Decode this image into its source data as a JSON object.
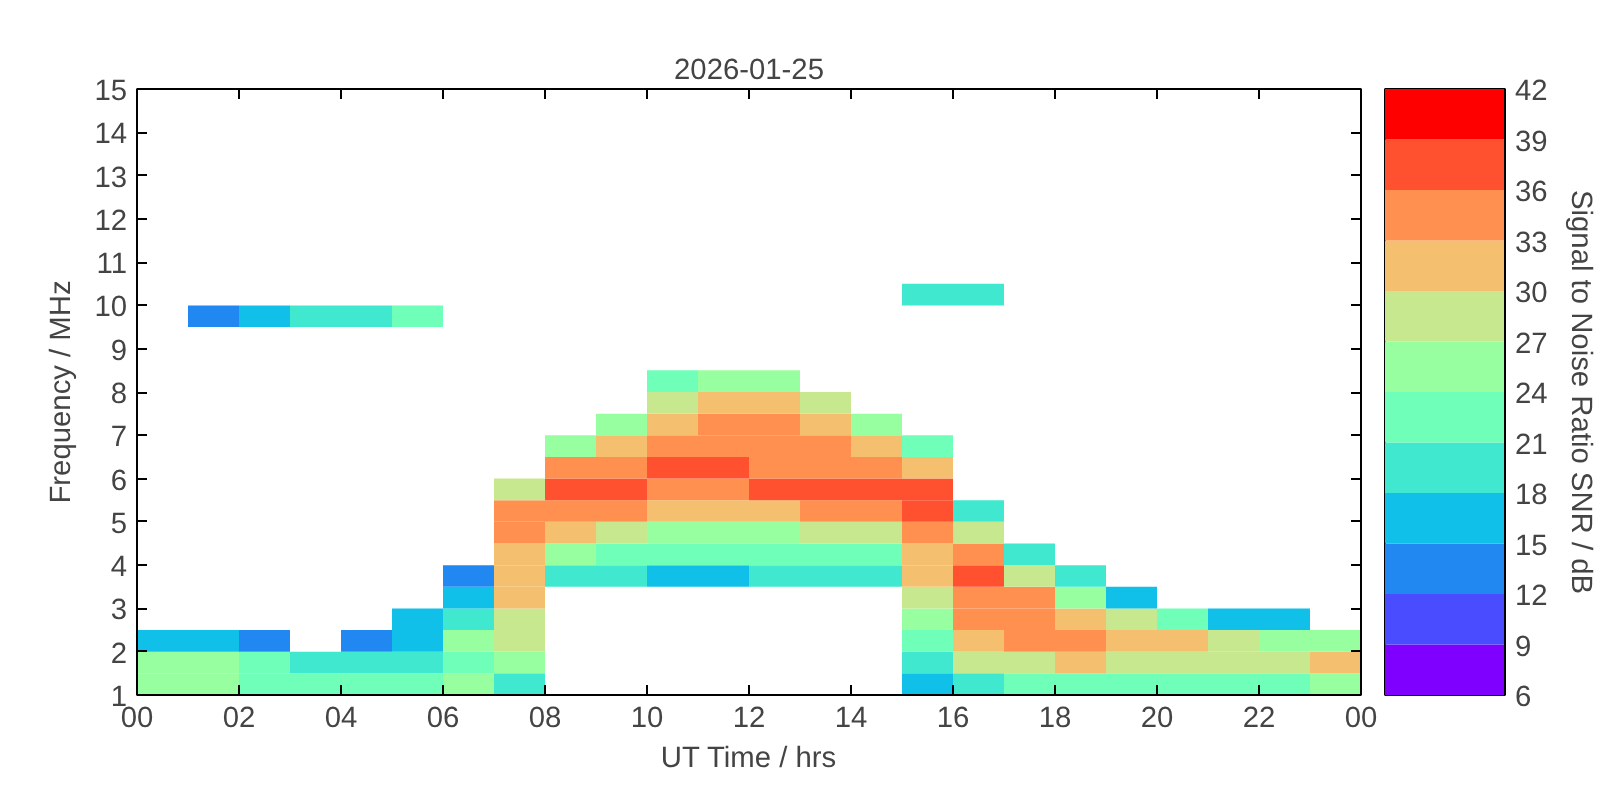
{
  "chart_data": {
    "type": "scatter",
    "title": "2026-01-25",
    "xlabel": "UT Time / hrs",
    "ylabel": "Frequency / MHz",
    "clabel": "Signal to Noise Ratio SNR / dB",
    "marker": "square",
    "grid": false,
    "xlim": [
      0,
      24
    ],
    "ylim": [
      1,
      15
    ],
    "xticks": [
      {
        "value": 0,
        "label": "00"
      },
      {
        "value": 2,
        "label": "02"
      },
      {
        "value": 4,
        "label": "04"
      },
      {
        "value": 6,
        "label": "06"
      },
      {
        "value": 8,
        "label": "08"
      },
      {
        "value": 10,
        "label": "10"
      },
      {
        "value": 12,
        "label": "12"
      },
      {
        "value": 14,
        "label": "14"
      },
      {
        "value": 16,
        "label": "16"
      },
      {
        "value": 18,
        "label": "18"
      },
      {
        "value": 20,
        "label": "20"
      },
      {
        "value": 22,
        "label": "22"
      },
      {
        "value": 24,
        "label": "00"
      }
    ],
    "yticks": [
      1,
      2,
      3,
      4,
      5,
      6,
      7,
      8,
      9,
      10,
      11,
      12,
      13,
      14,
      15
    ],
    "clim": [
      6,
      42
    ],
    "cticks": [
      6,
      9,
      12,
      15,
      18,
      21,
      24,
      27,
      30,
      33,
      36,
      39,
      42
    ],
    "x": [
      0.5,
      0.5,
      0.5,
      1.5,
      1.5,
      1.5,
      1.5,
      2.5,
      2.5,
      2.5,
      2.5,
      3.5,
      3.5,
      3.5,
      4.5,
      4.5,
      4.5,
      4.5,
      5.5,
      5.5,
      5.5,
      5.5,
      5.5,
      6.5,
      6.5,
      6.5,
      6.5,
      6.5,
      6.5,
      7.5,
      7.5,
      7.5,
      7.5,
      7.5,
      7.5,
      7.5,
      7.5,
      7.5,
      7.5,
      8.5,
      8.5,
      8.5,
      8.5,
      8.5,
      8.5,
      8.5,
      9.5,
      9.5,
      9.5,
      9.5,
      9.5,
      9.5,
      9.5,
      9.5,
      10.5,
      10.5,
      10.5,
      10.5,
      10.5,
      10.5,
      10.5,
      10.5,
      10.5,
      10.5,
      11.5,
      11.5,
      11.5,
      11.5,
      11.5,
      11.5,
      11.5,
      11.5,
      11.5,
      11.5,
      12.5,
      12.5,
      12.5,
      12.5,
      12.5,
      12.5,
      12.5,
      12.5,
      12.5,
      12.5,
      13.5,
      13.5,
      13.5,
      13.5,
      13.5,
      13.5,
      13.5,
      13.5,
      13.5,
      14.5,
      14.5,
      14.5,
      14.5,
      14.5,
      14.5,
      14.5,
      14.5,
      15.5,
      15.5,
      15.5,
      15.5,
      15.5,
      15.5,
      15.5,
      15.5,
      15.5,
      15.5,
      15.5,
      15.5,
      15.5,
      16.5,
      16.5,
      16.5,
      16.5,
      16.5,
      16.5,
      16.5,
      16.5,
      16.5,
      16.5,
      17.5,
      17.5,
      17.5,
      17.5,
      17.5,
      17.5,
      17.5,
      18.5,
      18.5,
      18.5,
      18.5,
      18.5,
      18.5,
      19.5,
      19.5,
      19.5,
      19.5,
      19.5,
      20.5,
      20.5,
      20.5,
      20.5,
      21.5,
      21.5,
      21.5,
      21.5,
      22.5,
      22.5,
      22.5,
      22.5,
      23.5,
      23.5,
      23.5
    ],
    "values": [
      1.25,
      1.75,
      2.25,
      1.25,
      1.75,
      2.25,
      9.75,
      1.25,
      1.75,
      2.25,
      9.75,
      1.25,
      1.75,
      9.75,
      1.25,
      1.75,
      2.25,
      9.75,
      1.25,
      1.75,
      2.25,
      2.75,
      9.75,
      1.25,
      1.75,
      2.25,
      2.75,
      3.25,
      3.75,
      1.25,
      1.75,
      2.25,
      2.75,
      3.25,
      3.75,
      4.25,
      4.75,
      5.25,
      5.75,
      3.75,
      4.25,
      4.75,
      5.25,
      5.75,
      6.25,
      6.75,
      3.75,
      4.25,
      4.75,
      5.25,
      5.75,
      6.25,
      6.75,
      7.25,
      3.75,
      4.25,
      4.75,
      5.25,
      5.75,
      6.25,
      6.75,
      7.25,
      7.75,
      8.25,
      3.75,
      4.25,
      4.75,
      5.25,
      5.75,
      6.25,
      6.75,
      7.25,
      7.75,
      8.25,
      3.75,
      4.25,
      4.75,
      5.25,
      5.75,
      6.25,
      6.75,
      7.25,
      7.75,
      8.25,
      3.75,
      4.25,
      4.75,
      5.25,
      5.75,
      6.25,
      6.75,
      7.25,
      7.75,
      3.75,
      4.25,
      4.75,
      5.25,
      5.75,
      6.25,
      6.75,
      7.25,
      1.25,
      1.75,
      2.25,
      2.75,
      3.25,
      3.75,
      4.25,
      4.75,
      5.25,
      5.75,
      6.25,
      6.75,
      10.25,
      1.25,
      1.75,
      2.25,
      2.75,
      3.25,
      3.75,
      4.25,
      4.75,
      5.25,
      10.25,
      1.25,
      1.75,
      2.25,
      2.75,
      3.25,
      3.75,
      4.25,
      1.25,
      1.75,
      2.25,
      2.75,
      3.25,
      3.75,
      1.25,
      1.75,
      2.25,
      2.75,
      3.25,
      1.25,
      1.75,
      2.25,
      2.75,
      1.25,
      1.75,
      2.25,
      2.75,
      1.25,
      1.75,
      2.25,
      2.75,
      1.25,
      1.75,
      2.25
    ],
    "cvalues": [
      24,
      24,
      15,
      24,
      26,
      15,
      14,
      23,
      22,
      14,
      16,
      22,
      20,
      18,
      22,
      18,
      14,
      20,
      21,
      20,
      16,
      15,
      21,
      24,
      22,
      24,
      20,
      16,
      14,
      20,
      24,
      27,
      29,
      30,
      30,
      31,
      33,
      34,
      28,
      20,
      24,
      30,
      34,
      36,
      33,
      25,
      19,
      22,
      27,
      33,
      36,
      35,
      32,
      25,
      17,
      22,
      26,
      32,
      35,
      36,
      34,
      32,
      29,
      22,
      17,
      21,
      25,
      31,
      35,
      36,
      35,
      34,
      31,
      24,
      18,
      22,
      26,
      32,
      36,
      35,
      34,
      33,
      31,
      24,
      19,
      22,
      27,
      33,
      36,
      34,
      33,
      32,
      28,
      18,
      23,
      28,
      34,
      36,
      33,
      31,
      26,
      16,
      20,
      22,
      25,
      27,
      30,
      32,
      35,
      38,
      37,
      30,
      22,
      18,
      20,
      28,
      32,
      34,
      35,
      36,
      33,
      27,
      20,
      19,
      22,
      29,
      33,
      34,
      33,
      28,
      20,
      22,
      30,
      33,
      32,
      26,
      18,
      22,
      29,
      31,
      28,
      17,
      22,
      28,
      30,
      22,
      22,
      28,
      28,
      17,
      21,
      27,
      26,
      15,
      24,
      30,
      24
    ]
  }
}
